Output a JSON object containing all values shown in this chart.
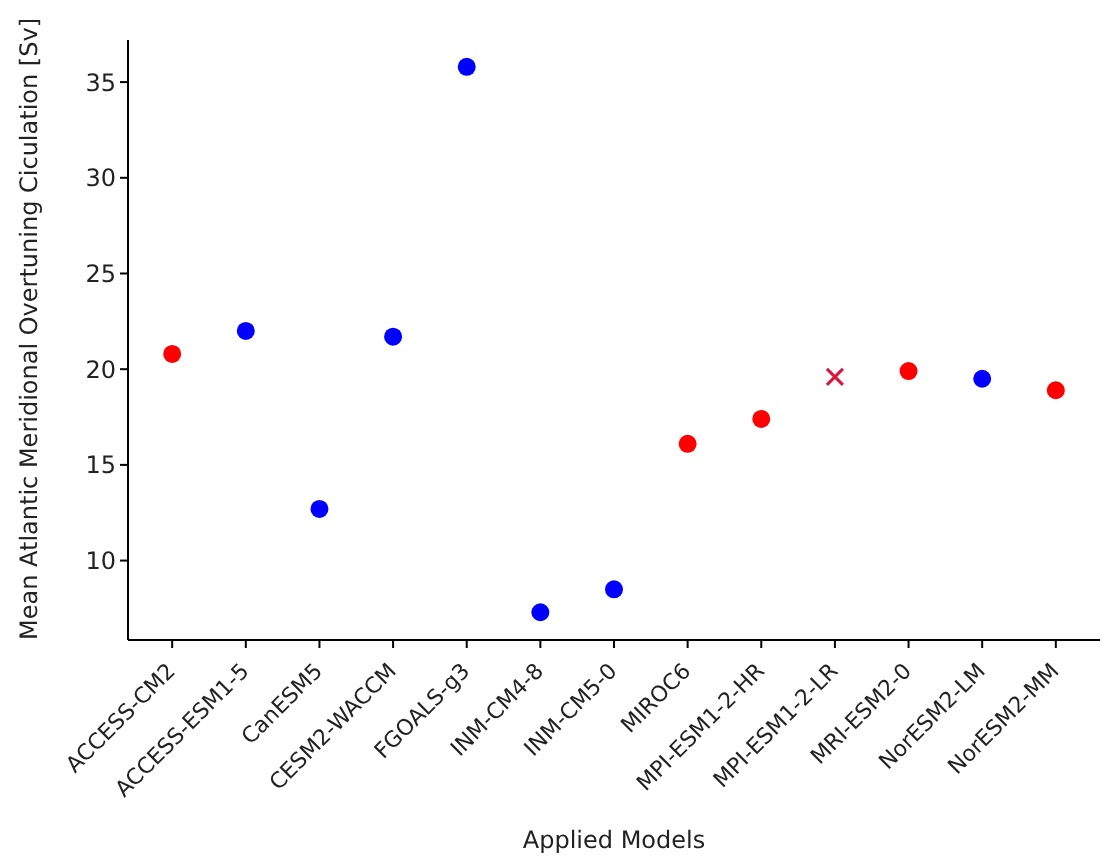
{
  "chart_data": {
    "type": "scatter",
    "xlabel": "Applied Models",
    "ylabel": "Mean Atlantic Meridional Overtuning Ciculation [Sv]",
    "categories": [
      "ACCESS-CM2",
      "ACCESS-ESM1-5",
      "CanESM5",
      "CESM2-WACCM",
      "FGOALS-g3",
      "INM-CM4-8",
      "INM-CM5-0",
      "MIROC6",
      "MPI-ESM1-2-HR",
      "MPI-ESM1-2-LR",
      "MRI-ESM2-0",
      "NorESM2-LM",
      "NorESM2-MM"
    ],
    "series": [
      {
        "color": "#ff0000",
        "marker": "circle",
        "values": [
          20.8,
          null,
          null,
          null,
          null,
          null,
          null,
          16.1,
          17.4,
          null,
          19.9,
          null,
          18.9
        ]
      },
      {
        "color": "#0000ff",
        "marker": "circle",
        "values": [
          null,
          22.0,
          12.7,
          21.7,
          35.8,
          7.3,
          8.5,
          null,
          null,
          null,
          null,
          19.5,
          null
        ]
      },
      {
        "color": "#dc143c",
        "marker": "cross",
        "values": [
          null,
          null,
          null,
          null,
          null,
          null,
          null,
          null,
          null,
          19.6,
          null,
          null,
          null
        ]
      }
    ],
    "ylim": [
      5.85,
      37.2
    ],
    "yticks": [
      10,
      15,
      20,
      25,
      30,
      35
    ],
    "grid": false,
    "legend": false
  }
}
